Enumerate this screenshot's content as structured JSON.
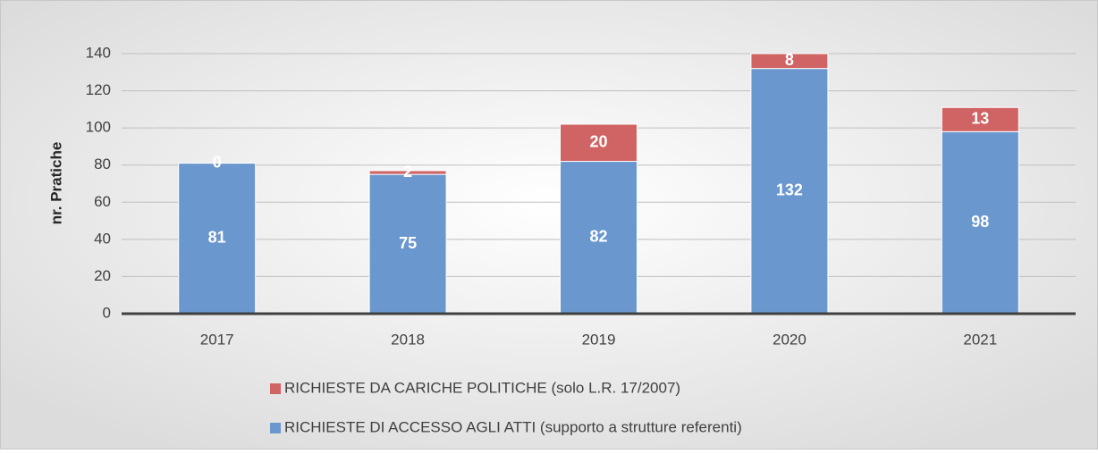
{
  "chart_data": {
    "type": "stacked_bar",
    "y_label": "nr. Pratiche",
    "categories": [
      "2017",
      "2018",
      "2019",
      "2020",
      "2021"
    ],
    "series": [
      {
        "name": "RICHIESTE DI ACCESSO AGLI ATTI (supporto a strutture referenti)",
        "color": "#6a97cd",
        "values": [
          81,
          75,
          82,
          132,
          98
        ]
      },
      {
        "name": "RICHIESTE DA CARICHE POLITICHE (solo L.R. 17/2007)",
        "color": "#d06363",
        "values": [
          0,
          2,
          20,
          8,
          13
        ]
      }
    ],
    "ylim": [
      0,
      140
    ],
    "yticks": [
      0,
      20,
      40,
      60,
      80,
      100,
      120,
      140
    ],
    "grid": true
  }
}
